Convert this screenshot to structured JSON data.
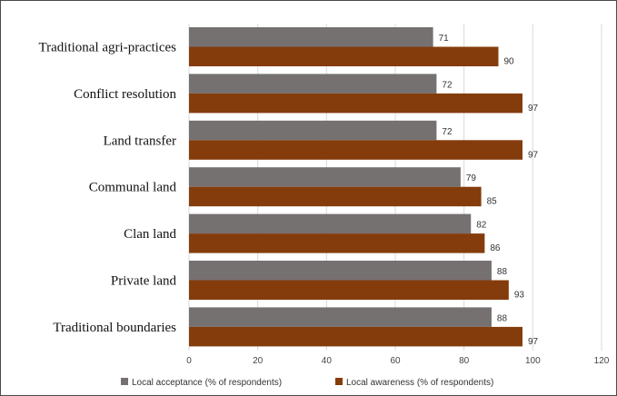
{
  "chart_data": {
    "type": "bar",
    "orientation": "horizontal",
    "categories": [
      "Traditional agri-practices",
      "Conflict resolution",
      "Land transfer",
      "Communal land",
      "Clan land",
      "Private land",
      "Traditional boundaries"
    ],
    "series": [
      {
        "name": "Local acceptance (% of respondents)",
        "color": "#767171",
        "values": [
          71,
          72,
          72,
          79,
          82,
          88,
          88
        ]
      },
      {
        "name": "Local awareness (% of respondents)",
        "color": "#843C0C",
        "values": [
          90,
          97,
          97,
          85,
          86,
          93,
          97
        ]
      }
    ],
    "xlim": [
      0,
      120
    ],
    "xticks": [
      0,
      20,
      40,
      60,
      80,
      100,
      120
    ],
    "grid": "vertical",
    "legend": "bottom",
    "data_labels": true
  }
}
